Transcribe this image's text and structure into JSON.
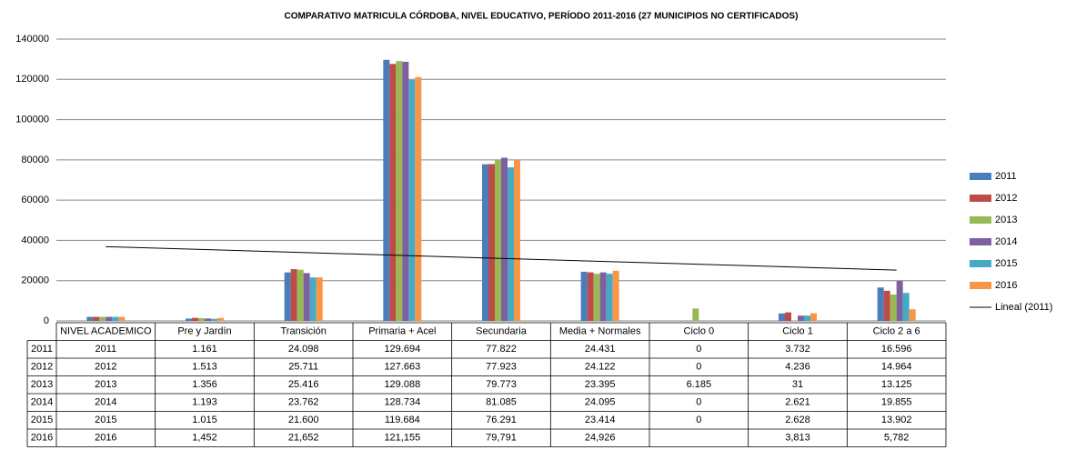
{
  "chart_data": {
    "type": "bar",
    "title": "COMPARATIVO MATRICULA CÓRDOBA, NIVEL EDUCATIVO, PERÍODO 2011-2016 (27  MUNICIPIOS NO  CERTIFICADOS)",
    "categories": [
      "NIVEL ACADEMICO",
      "Pre y Jardín",
      "Transición",
      "Primaria + Acel",
      "Secundaria",
      "Media + Normales",
      "Ciclo 0",
      "Ciclo 1",
      "Ciclo 2 a 6"
    ],
    "series": [
      {
        "name": "2011",
        "color": "#4a7ebb",
        "values": [
          2011,
          1161,
          24098,
          129694,
          77822,
          24431,
          0,
          3732,
          16596
        ],
        "value_labels": [
          "2011",
          "1.161",
          "24.098",
          "129.694",
          "77.822",
          "24.431",
          "0",
          "3.732",
          "16.596"
        ]
      },
      {
        "name": "2012",
        "color": "#be4b48",
        "values": [
          2012,
          1513,
          25711,
          127663,
          77923,
          24122,
          0,
          4236,
          14964
        ],
        "value_labels": [
          "2012",
          "1.513",
          "25.711",
          "127.663",
          "77.923",
          "24.122",
          "0",
          "4.236",
          "14.964"
        ]
      },
      {
        "name": "2013",
        "color": "#98b954",
        "values": [
          2013,
          1356,
          25416,
          129088,
          79773,
          23395,
          6185,
          31,
          13125
        ],
        "value_labels": [
          "2013",
          "1.356",
          "25.416",
          "129.088",
          "79.773",
          "23.395",
          "6.185",
          "31",
          "13.125"
        ]
      },
      {
        "name": "2014",
        "color": "#7d60a0",
        "values": [
          2014,
          1193,
          23762,
          128734,
          81085,
          24095,
          0,
          2621,
          19855
        ],
        "value_labels": [
          "2014",
          "1.193",
          "23.762",
          "128.734",
          "81.085",
          "24.095",
          "0",
          "2.621",
          "19.855"
        ]
      },
      {
        "name": "2015",
        "color": "#46aac5",
        "values": [
          2015,
          1015,
          21600,
          119684,
          76291,
          23414,
          0,
          2628,
          13902
        ],
        "value_labels": [
          "2015",
          "1.015",
          "21.600",
          "119.684",
          "76.291",
          "23.414",
          "0",
          "2.628",
          "13.902"
        ]
      },
      {
        "name": "2016",
        "color": "#f79646",
        "values": [
          2016,
          1452,
          21652,
          121155,
          79791,
          24926,
          null,
          3813,
          5782
        ],
        "value_labels": [
          "2016",
          "1,452",
          "21,652",
          "121,155",
          "79,791",
          "24,926",
          null,
          "3,813",
          "5,782"
        ]
      }
    ],
    "trendline": {
      "name": "Lineal (2011)",
      "series": 0,
      "color": "#000000"
    },
    "ylim": [
      0,
      140000
    ],
    "yticks": [
      0,
      20000,
      40000,
      60000,
      80000,
      100000,
      120000,
      140000
    ],
    "grid": true,
    "legend": "right"
  }
}
